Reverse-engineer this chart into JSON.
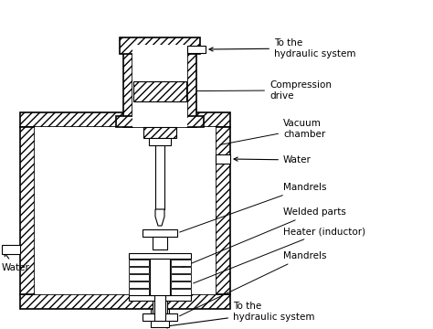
{
  "bg_color": "#ffffff",
  "line_color": "#000000",
  "labels": {
    "hydraulic_top": "To the\nhydraulic system",
    "compression": "Compression\ndrive",
    "vacuum": "Vacuum\nchamber",
    "water_right": "Water",
    "mandrels_top": "Mandrels",
    "welded": "Welded parts",
    "heater": "Heater (inductor)",
    "mandrels_bot": "Mandrels",
    "water_left": "Water",
    "hydraulic_bot": "To the\nhydraulic system"
  },
  "figsize": [
    4.74,
    3.6
  ],
  "dpi": 100
}
